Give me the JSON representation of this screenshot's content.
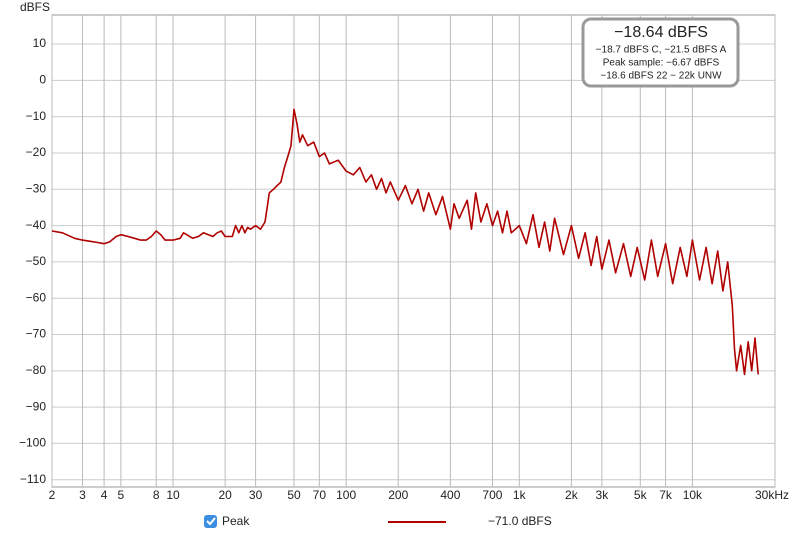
{
  "chart_data": {
    "type": "line",
    "ylabel": "dBFS",
    "log_x": true,
    "grid": true,
    "xlim": [
      2,
      30000
    ],
    "ylim": [
      -112,
      18
    ],
    "xticks": [
      2,
      3,
      4,
      5,
      8,
      10,
      20,
      30,
      50,
      70,
      100,
      200,
      400,
      700,
      {
        "value": 1000,
        "label": "1k"
      },
      {
        "value": 2000,
        "label": "2k"
      },
      {
        "value": 3000,
        "label": "3k"
      },
      {
        "value": 5000,
        "label": "5k"
      },
      {
        "value": 7000,
        "label": "7k"
      },
      {
        "value": 10000,
        "label": "10k"
      },
      {
        "value": 30000,
        "label": "30kHz"
      }
    ],
    "yticks": [
      10,
      0,
      {
        "value": -10,
        "label": "−10"
      },
      {
        "value": -20,
        "label": "−20"
      },
      {
        "value": -30,
        "label": "−30"
      },
      {
        "value": -40,
        "label": "−40"
      },
      {
        "value": -50,
        "label": "−50"
      },
      {
        "value": -60,
        "label": "−60"
      },
      {
        "value": -70,
        "label": "−70"
      },
      {
        "value": -80,
        "label": "−80"
      },
      {
        "value": -90,
        "label": "−90"
      },
      {
        "value": -100,
        "label": "−100"
      },
      {
        "value": -110,
        "label": "−110"
      }
    ],
    "x": [
      2,
      2.3,
      2.7,
      3,
      3.5,
      4,
      4.3,
      4.7,
      5,
      5.5,
      6,
      6.5,
      7,
      7.5,
      8,
      8.5,
      9,
      10,
      11,
      11.5,
      12,
      13,
      14,
      15,
      16,
      17,
      18,
      19,
      20,
      22,
      23,
      24,
      25,
      26,
      27,
      28,
      30,
      32,
      34,
      35,
      36,
      38,
      40,
      42,
      44,
      46,
      48,
      50,
      52,
      54,
      56,
      60,
      65,
      70,
      75,
      80,
      90,
      100,
      110,
      120,
      130,
      140,
      150,
      160,
      170,
      180,
      200,
      220,
      240,
      260,
      280,
      300,
      330,
      360,
      400,
      420,
      450,
      500,
      530,
      560,
      600,
      650,
      700,
      750,
      800,
      850,
      900,
      1000,
      1100,
      1200,
      1300,
      1400,
      1500,
      1600,
      1800,
      2000,
      2200,
      2400,
      2600,
      2800,
      3000,
      3300,
      3600,
      4000,
      4400,
      4800,
      5300,
      5800,
      6300,
      7000,
      7700,
      8500,
      9300,
      10000,
      11000,
      12000,
      13000,
      14000,
      15000,
      16000,
      17000,
      17500,
      18000,
      19000,
      20000,
      21000,
      22000,
      23000,
      24000
    ],
    "series": [
      {
        "name": "Peak",
        "color": "#b00000",
        "values": [
          -41.5,
          -42,
          -43.5,
          -44,
          -44.5,
          -45,
          -44.5,
          -43,
          -42.5,
          -43,
          -43.5,
          -44,
          -44,
          -43,
          -41.5,
          -42.5,
          -44,
          -44,
          -43.5,
          -42,
          -42.5,
          -43.5,
          -43,
          -42,
          -42.5,
          -43,
          -42,
          -41.5,
          -43,
          -43,
          -40,
          -42,
          -40,
          -42,
          -40.5,
          -41,
          -40,
          -41,
          -39,
          -35,
          -31,
          -30,
          -29,
          -28,
          -24,
          -21,
          -18,
          -8,
          -12,
          -17,
          -15,
          -18,
          -17,
          -21,
          -20,
          -23,
          -22,
          -25,
          -26,
          -24,
          -28,
          -26,
          -30,
          -27,
          -31,
          -28,
          -33,
          -29,
          -34,
          -30,
          -36,
          -31,
          -37,
          -32,
          -41,
          -34,
          -38,
          -33,
          -41,
          -31,
          -39,
          -34,
          -40,
          -36,
          -42,
          -36,
          -42,
          -40,
          -45,
          -37,
          -46,
          -39,
          -47,
          -38,
          -48,
          -40,
          -49,
          -42,
          -51,
          -43,
          -52,
          -44,
          -53,
          -45,
          -54,
          -46,
          -55,
          -44,
          -54,
          -45,
          -56,
          -46,
          -54,
          -44,
          -55,
          -46,
          -56,
          -47,
          -58,
          -50,
          -62,
          -74,
          -80,
          -73,
          -81,
          -72,
          -80,
          -71,
          -81
        ]
      }
    ],
    "legend_value": "−71.0 dBFS",
    "readout": {
      "main": "−18.64 dBFS",
      "lines": [
        "−18.7 dBFS C, −21.5 dBFS A",
        "Peak sample: −6.67 dBFS",
        "−18.6 dBFS 22 − 22k UNW"
      ]
    }
  }
}
